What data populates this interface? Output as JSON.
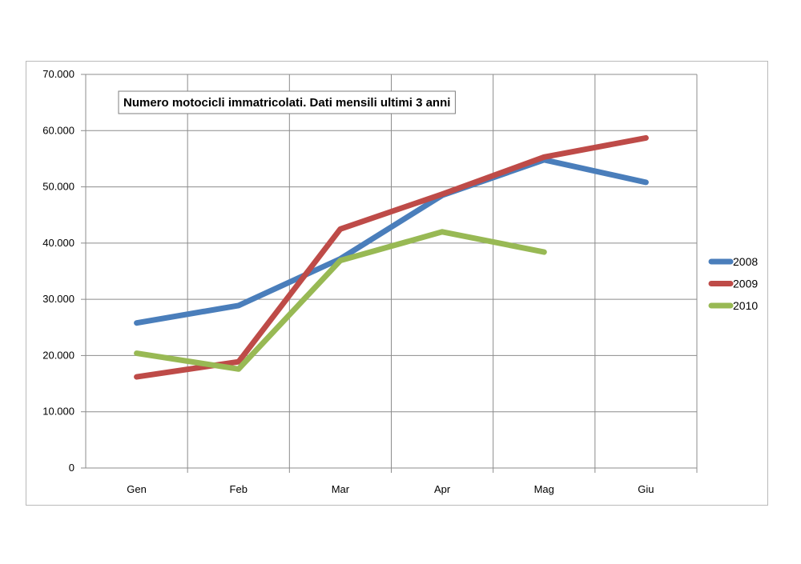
{
  "chart_data": {
    "type": "line",
    "title": "Numero motocicli immatricolati. Dati mensili ultimi 3 anni",
    "xlabel": "",
    "ylabel": "",
    "categories": [
      "Gen",
      "Feb",
      "Mar",
      "Apr",
      "Mag",
      "Giu"
    ],
    "ylim": [
      0,
      70000
    ],
    "yticks": [
      0,
      10000,
      20000,
      30000,
      40000,
      50000,
      60000,
      70000
    ],
    "ytick_labels": [
      "0",
      "10.000",
      "20.000",
      "30.000",
      "40.000",
      "50.000",
      "60.000",
      "70.000"
    ],
    "grid": true,
    "legend_position": "right",
    "series": [
      {
        "name": "2008",
        "color": "#4a7ebb",
        "values": [
          25800,
          28900,
          37200,
          48500,
          54800,
          50800
        ]
      },
      {
        "name": "2009",
        "color": "#be4b48",
        "values": [
          16200,
          18900,
          42500,
          48700,
          55300,
          58700
        ]
      },
      {
        "name": "2010",
        "color": "#98b954",
        "values": [
          20400,
          17600,
          36900,
          42000,
          38400,
          null
        ]
      }
    ]
  }
}
